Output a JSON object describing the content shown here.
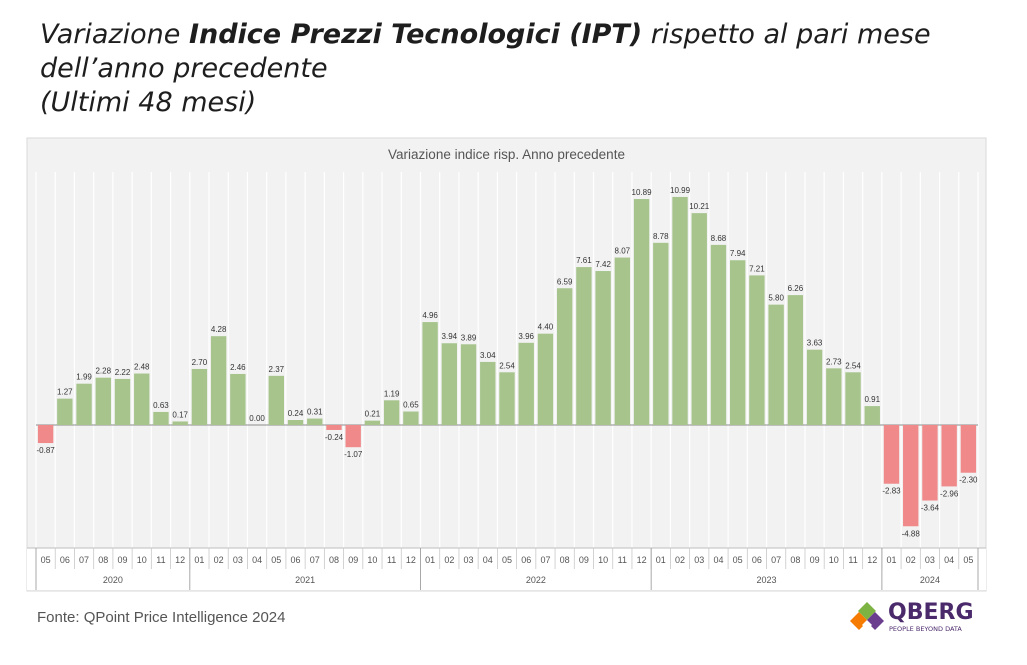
{
  "heading": {
    "line1_pre": "Variazione ",
    "line1_bold": "Indice Prezzi Tecnologici (IPT)",
    "line1_post": " rispetto al pari mese",
    "line2": "dell’anno precedente",
    "line3": "(Ultimi 48 mesi)"
  },
  "footer": {
    "source": "Fonte: QPoint Price Intelligence 2024",
    "brand_name": "QBERG",
    "brand_tagline": "PEOPLE BEYOND DATA"
  },
  "colors": {
    "positive": "#a6c48c",
    "negative": "#f08a8a",
    "plot_background": "#f2f2f2",
    "brand": "#4b2a6b"
  },
  "chart_data": {
    "type": "bar",
    "title": "Variazione indice risp. Anno precedente",
    "xlabel": "",
    "ylabel": "",
    "ylim": [
      -6,
      12
    ],
    "grid": "vertical",
    "categories": [
      "05",
      "06",
      "07",
      "08",
      "09",
      "10",
      "11",
      "12",
      "01",
      "02",
      "03",
      "04",
      "05",
      "06",
      "07",
      "08",
      "09",
      "10",
      "11",
      "12",
      "01",
      "02",
      "03",
      "04",
      "05",
      "06",
      "07",
      "08",
      "09",
      "10",
      "11",
      "12",
      "01",
      "02",
      "03",
      "04",
      "05",
      "06",
      "07",
      "08",
      "09",
      "10",
      "11",
      "12",
      "01",
      "02",
      "03",
      "04",
      "05"
    ],
    "values": [
      -0.87,
      1.27,
      1.99,
      2.28,
      2.22,
      2.48,
      0.63,
      0.17,
      2.7,
      4.28,
      2.46,
      0.0,
      2.37,
      0.24,
      0.31,
      -0.24,
      -1.07,
      0.21,
      1.19,
      0.65,
      4.96,
      3.94,
      3.89,
      3.04,
      2.54,
      3.96,
      4.4,
      6.59,
      7.61,
      7.42,
      8.07,
      10.89,
      8.78,
      10.99,
      10.21,
      8.68,
      7.94,
      7.21,
      5.8,
      6.26,
      3.63,
      2.73,
      2.54,
      0.91,
      -2.83,
      -4.88,
      -3.64,
      -2.96,
      -2.3
    ],
    "labels": [
      "-0.87",
      "1.27",
      "1.99",
      "2.28",
      "2.22",
      "2.48",
      "0.63",
      "0.17",
      "2.70",
      "4.28",
      "2.46",
      "0.00",
      "2.37",
      "0.24",
      "0.31",
      "-0.24",
      "-1.07",
      "0.21",
      "1.19",
      "0.65",
      "4.96",
      "3.94",
      "3.89",
      "3.04",
      "2.54",
      "3.96",
      "4.40",
      "6.59",
      "7.61",
      "7.42",
      "8.07",
      "10.89",
      "8.78",
      "10.99",
      "10.21",
      "8.68",
      "7.94",
      "7.21",
      "5.80",
      "6.26",
      "3.63",
      "2.73",
      "2.54",
      "0.91",
      "-2.83",
      "-4.88",
      "-3.64",
      "-2.96",
      "-2.30"
    ],
    "years": [
      {
        "label": "2020",
        "months": 8
      },
      {
        "label": "2021",
        "months": 12
      },
      {
        "label": "2022",
        "months": 12
      },
      {
        "label": "2023",
        "months": 12
      },
      {
        "label": "2024",
        "months": 5
      }
    ]
  }
}
